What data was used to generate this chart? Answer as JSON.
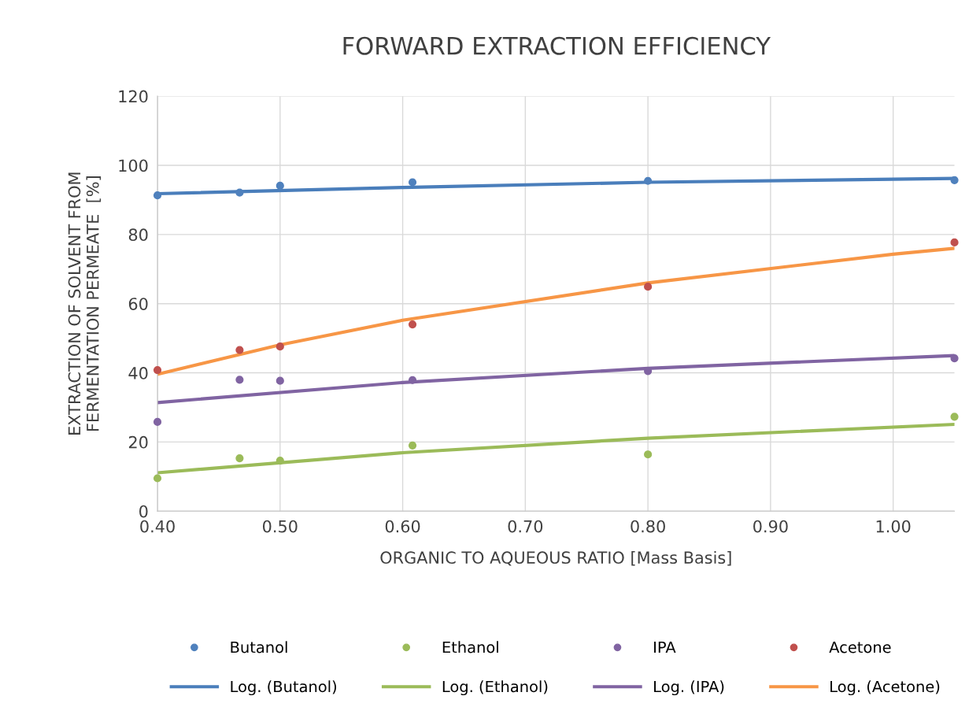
{
  "chart_data": {
    "type": "scatter",
    "title": "FORWARD EXTRACTION EFFICIENCY",
    "xlabel": "ORGANIC TO AQUEOUS RATIO [Mass Basis]",
    "ylabel": "EXTRACTION OF SOLVENT FROM\nFERMENTATION PERMEATE  [%]",
    "xlim": [
      0.4,
      1.05
    ],
    "xticks": [
      {
        "value": 0.4,
        "label": "0.40"
      },
      {
        "value": 0.5,
        "label": "0.50"
      },
      {
        "value": 0.6,
        "label": "0.60"
      },
      {
        "value": 0.7,
        "label": "0.70"
      },
      {
        "value": 0.8,
        "label": "0.80"
      },
      {
        "value": 0.9,
        "label": "0.90"
      },
      {
        "value": 1.0,
        "label": "1.00"
      }
    ],
    "ylim": [
      0,
      120
    ],
    "yticks": [
      0,
      20,
      40,
      60,
      80,
      100,
      120
    ],
    "grid": true,
    "legend": "bottom",
    "series": [
      {
        "name": "Butanol",
        "marker": "circle",
        "color": "#4f81bd",
        "x": [
          0.4,
          0.467,
          0.5,
          0.608,
          0.8,
          1.05
        ],
        "values": [
          91.3,
          92.1,
          94.1,
          95.1,
          95.5,
          95.7
        ]
      },
      {
        "name": "Log. (Butanol)",
        "type": "line",
        "marker": "none",
        "line_style": "solid",
        "color": "#4a7ebb",
        "x": [
          0.4,
          0.6,
          0.8,
          1.05
        ],
        "values": [
          91.8,
          93.6,
          95.1,
          96.2
        ]
      },
      {
        "name": "Ethanol",
        "marker": "circle",
        "color": "#9bbb59",
        "x": [
          0.4,
          0.467,
          0.5,
          0.608,
          0.8,
          1.05
        ],
        "values": [
          9.5,
          15.3,
          14.6,
          19.0,
          16.4,
          27.3
        ]
      },
      {
        "name": "Log. (Ethanol)",
        "type": "line",
        "marker": "none",
        "line_style": "solid",
        "color": "#9bbb59",
        "x": [
          0.4,
          0.6,
          0.8,
          1.05
        ],
        "values": [
          11.1,
          16.9,
          21.1,
          25.1
        ]
      },
      {
        "name": "IPA",
        "marker": "circle",
        "color": "#8064a2",
        "x": [
          0.4,
          0.467,
          0.5,
          0.608,
          0.8,
          1.05
        ],
        "values": [
          25.8,
          38.0,
          37.7,
          37.9,
          40.5,
          44.2
        ]
      },
      {
        "name": "Log. (IPA)",
        "type": "line",
        "marker": "none",
        "line_style": "solid",
        "color": "#8064a2",
        "x": [
          0.4,
          0.6,
          0.8,
          1.05
        ],
        "values": [
          31.4,
          37.2,
          41.3,
          45.0
        ]
      },
      {
        "name": "Acetone",
        "marker": "circle",
        "color": "#c0504d",
        "x": [
          0.4,
          0.467,
          0.5,
          0.608,
          0.8,
          1.05
        ],
        "values": [
          40.8,
          46.6,
          47.6,
          54.0,
          64.9,
          77.7
        ]
      },
      {
        "name": "Log. (Acetone)",
        "type": "line",
        "marker": "none",
        "line_style": "solid",
        "color": "#f79646",
        "x": [
          0.4,
          0.5,
          0.6,
          0.8,
          1.0,
          1.05
        ],
        "values": [
          39.6,
          48.1,
          55.2,
          66.0,
          74.3,
          76.0
        ]
      }
    ]
  }
}
